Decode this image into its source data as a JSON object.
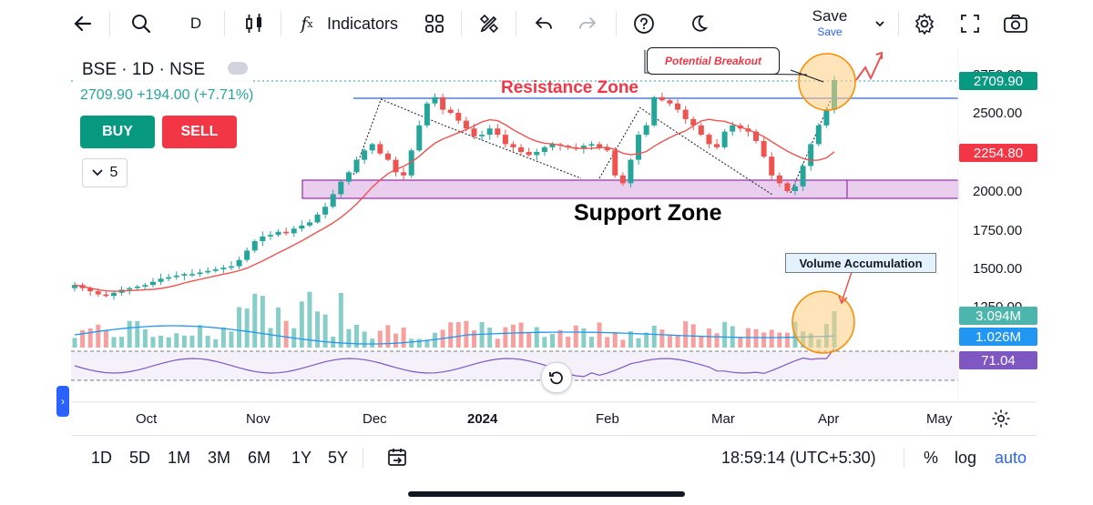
{
  "toolbar": {
    "interval": "D",
    "indicators_label": "Indicators",
    "save_label": "Save",
    "save_sub": "Save"
  },
  "legend": {
    "title": "BSE · 1D · NSE",
    "price_line": "2709.90 +194.00 (+7.71%)"
  },
  "trade": {
    "buy": "BUY",
    "sell": "SELL",
    "collapse_count": "5"
  },
  "annotations": {
    "resistance": "Resistance Zone",
    "support": "Support Zone",
    "breakout": "Potential Breakout",
    "volume": "Volume Accumulation"
  },
  "price_axis": {
    "ticks": [
      "2750.00",
      "2500.00",
      "2000.00",
      "1750.00",
      "1500.00",
      "1250.00"
    ],
    "last_price": "2709.90",
    "ma_value": "2254.80",
    "volume_value": "3.094M",
    "volume_ma_value": "1.026M",
    "rsi_value": "71.04"
  },
  "time_axis": [
    "Oct",
    "Nov",
    "Dec",
    "2024",
    "Feb",
    "Mar",
    "Apr",
    "May"
  ],
  "bottom_bar": {
    "ranges": [
      "1D",
      "5D",
      "1M",
      "3M",
      "6M",
      "1Y",
      "5Y"
    ],
    "clock": "18:59:14 (UTC+5:30)",
    "percent": "%",
    "log": "log",
    "auto": "auto"
  },
  "colors": {
    "up": "#26a69a",
    "down": "#ef5350",
    "accent_blue": "#2962ff",
    "support_fill": "#e1bee7",
    "rsi": "#7e57c2"
  },
  "chart_data": {
    "type": "candlestick",
    "title": "BSE · 1D · NSE",
    "last_close": 2709.9,
    "change": 194.0,
    "change_pct": 7.71,
    "resistance_level": 2620,
    "support_range": [
      1960,
      2070
    ],
    "ma": 2254.8,
    "volume_last": "3.094M",
    "volume_ma": "1.026M",
    "rsi": 71.04,
    "ylim": [
      1200,
      2800
    ],
    "closes": [
      1400,
      1380,
      1360,
      1340,
      1330,
      1350,
      1370,
      1380,
      1390,
      1400,
      1420,
      1440,
      1450,
      1460,
      1470,
      1470,
      1480,
      1490,
      1500,
      1510,
      1520,
      1560,
      1620,
      1680,
      1710,
      1720,
      1740,
      1730,
      1760,
      1780,
      1800,
      1850,
      1900,
      1980,
      2060,
      2120,
      2200,
      2260,
      2300,
      2240,
      2200,
      2120,
      2100,
      2260,
      2420,
      2560,
      2600,
      2520,
      2500,
      2450,
      2400,
      2350,
      2360,
      2400,
      2360,
      2300,
      2280,
      2250,
      2230,
      2250,
      2280,
      2300,
      2290,
      2280,
      2270,
      2290,
      2300,
      2280,
      2260,
      2100,
      2050,
      2200,
      2360,
      2420,
      2600,
      2580,
      2560,
      2520,
      2460,
      2420,
      2360,
      2300,
      2280,
      2380,
      2420,
      2400,
      2380,
      2320,
      2220,
      2100,
      2050,
      2000,
      2030,
      2160,
      2300,
      2420,
      2520,
      2709.9
    ]
  }
}
